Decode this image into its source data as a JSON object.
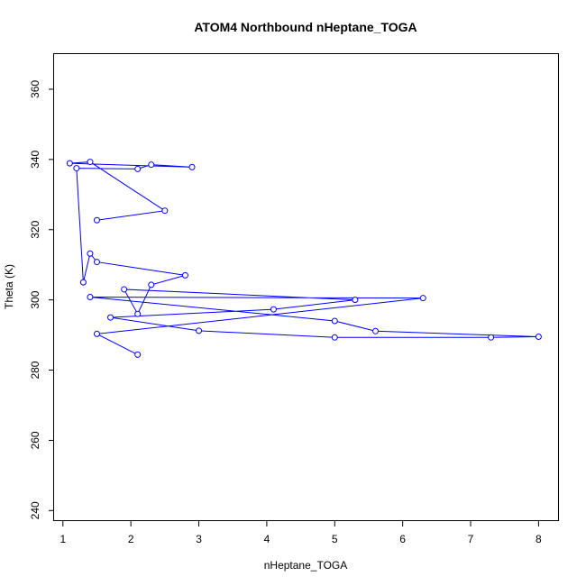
{
  "chart_data": {
    "type": "line",
    "title": "ATOM4 Northbound nHeptane_TOGA",
    "xlabel": "nHeptane_TOGA",
    "ylabel": "Theta (K)",
    "xlim": [
      0.87,
      8.3
    ],
    "ylim": [
      237,
      370
    ],
    "xticks": [
      1,
      2,
      3,
      4,
      5,
      6,
      7,
      8
    ],
    "yticks": [
      240,
      260,
      280,
      300,
      320,
      340,
      360
    ],
    "grid": false,
    "legend": "none",
    "colors": {
      "series": "#0000ff",
      "background": "#ffffff"
    },
    "series": [
      {
        "points": [
          [
            2.1,
            284.4
          ],
          [
            1.5,
            290.3
          ],
          [
            6.3,
            300.5
          ],
          [
            1.4,
            300.8
          ],
          [
            5.0,
            294.0
          ],
          [
            5.6,
            291.1
          ],
          [
            8.0,
            289.5
          ],
          [
            7.3,
            289.3
          ],
          [
            5.0,
            289.3
          ],
          [
            3.0,
            291.2
          ],
          [
            1.7,
            295.0
          ],
          [
            4.1,
            297.3
          ],
          [
            5.3,
            300.0
          ],
          [
            1.9,
            303.0
          ],
          [
            2.1,
            296.0
          ],
          [
            2.3,
            304.3
          ],
          [
            2.8,
            307.0
          ],
          [
            1.5,
            310.8
          ],
          [
            1.4,
            313.2
          ],
          [
            1.3,
            305.0
          ],
          [
            1.2,
            337.5
          ],
          [
            2.1,
            337.3
          ],
          [
            2.3,
            338.5
          ],
          [
            2.9,
            337.8
          ],
          [
            1.1,
            338.9
          ],
          [
            1.4,
            339.3
          ],
          [
            2.5,
            325.4
          ],
          [
            1.5,
            322.7
          ]
        ]
      }
    ]
  }
}
